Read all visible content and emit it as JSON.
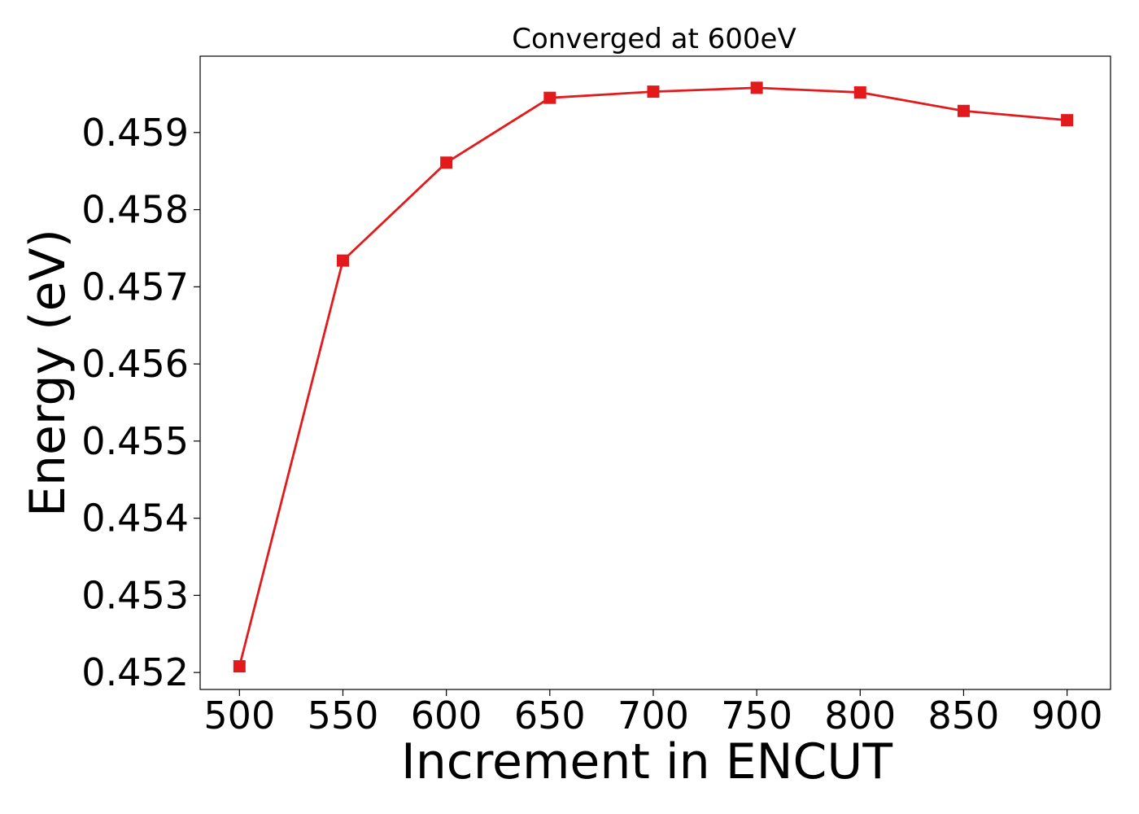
{
  "chart_data": {
    "type": "line",
    "title": "Converged at 600eV",
    "xlabel": "Increment in ENCUT",
    "ylabel": "Energy (eV)",
    "x": [
      500,
      550,
      600,
      650,
      700,
      750,
      800,
      850,
      900
    ],
    "series": [
      {
        "values": [
          0.45208,
          0.45734,
          0.45861,
          0.45945,
          0.45953,
          0.45958,
          0.45952,
          0.45928,
          0.45916
        ],
        "color": "#e31a1c",
        "marker": "square"
      }
    ],
    "xticks": [
      "500",
      "550",
      "600",
      "650",
      "700",
      "750",
      "800",
      "850",
      "900"
    ],
    "yticks": [
      "0.452",
      "0.453",
      "0.454",
      "0.455",
      "0.456",
      "0.457",
      "0.458",
      "0.459"
    ],
    "xlim": [
      481,
      921
    ],
    "ylim": [
      0.45178,
      0.45999
    ],
    "grid": false,
    "legend": "none"
  }
}
